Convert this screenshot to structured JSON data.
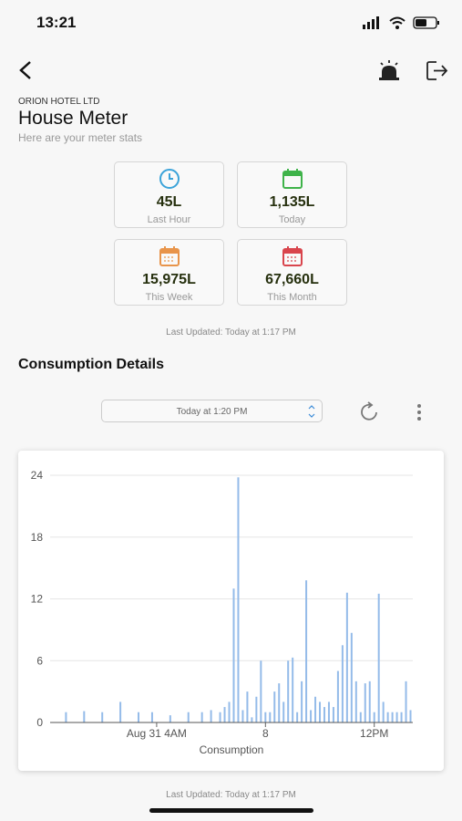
{
  "status_bar": {
    "time": "13:21"
  },
  "header": {
    "company": "ORION HOTEL LTD",
    "title": "House Meter",
    "subtitle": "Here are your meter stats"
  },
  "stats": [
    {
      "value": "45L",
      "label": "Last Hour"
    },
    {
      "value": "1,135L",
      "label": "Today"
    },
    {
      "value": "15,975L",
      "label": "This Week"
    },
    {
      "value": "67,660L",
      "label": "This Month"
    }
  ],
  "last_updated": "Last Updated: Today at 1:17 PM",
  "section_title": "Consumption Details",
  "picker": "Today at 1:20 PM",
  "chart_data": {
    "type": "bar",
    "color": "#94bbe9",
    "xlabel": "Consumption",
    "categories": [
      null,
      null,
      null,
      null,
      null,
      null,
      null,
      null,
      null,
      null,
      null,
      null,
      null,
      null,
      null,
      null,
      null,
      null,
      null,
      null,
      null,
      null,
      null,
      "Aug 31 4AM",
      null,
      null,
      null,
      null,
      null,
      null,
      null,
      null,
      null,
      null,
      null,
      null,
      null,
      null,
      null,
      null,
      null,
      null,
      null,
      null,
      null,
      null,
      null,
      "8",
      null,
      null,
      null,
      null,
      null,
      null,
      null,
      null,
      null,
      null,
      null,
      null,
      null,
      null,
      null,
      null,
      null,
      null,
      null,
      null,
      null,
      null,
      null,
      "12PM",
      null,
      null,
      null,
      null,
      null,
      null,
      null,
      null
    ],
    "values": [
      0,
      0,
      0,
      1,
      0,
      0,
      0,
      1.1,
      0,
      0,
      0,
      1,
      0,
      0,
      0,
      2,
      0,
      0,
      0,
      1,
      0,
      0,
      1,
      0,
      0,
      0,
      0.7,
      0,
      0,
      0,
      1,
      0,
      0,
      1,
      0,
      1.2,
      0,
      1,
      1.5,
      2,
      13,
      23.8,
      1.2,
      3,
      0.5,
      2.5,
      6,
      1,
      1,
      3,
      3.8,
      2,
      6,
      6.3,
      1,
      4,
      13.8,
      1.2,
      2.5,
      2,
      1.5,
      2,
      1.5,
      5,
      7.5,
      12.6,
      8.7,
      4,
      1,
      3.8,
      4,
      1,
      12.5,
      2,
      1,
      1,
      1,
      1,
      4,
      1.2
    ],
    "ylim": [
      0,
      24
    ],
    "yticks": [
      0,
      6,
      12,
      18,
      24
    ],
    "grid": true
  },
  "footer_updated": "Last Updated: Today at 1:17 PM"
}
